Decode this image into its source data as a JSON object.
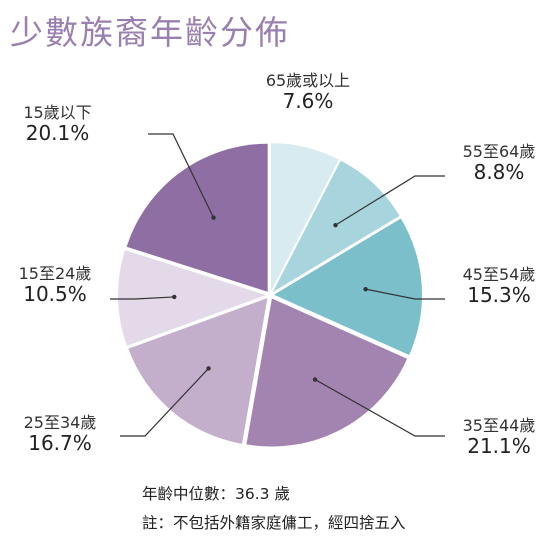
{
  "chart_data": {
    "type": "pie",
    "title": "少數族裔年齡分佈",
    "slices": [
      {
        "label": "65歲或以上",
        "value": 7.6,
        "value_label": "7.6%",
        "color": "#d8ebf0"
      },
      {
        "label": "55至64歲",
        "value": 8.8,
        "value_label": "8.8%",
        "color": "#a8d5dd"
      },
      {
        "label": "45至54歲",
        "value": 15.3,
        "value_label": "15.3%",
        "color": "#7bbfcb"
      },
      {
        "label": "35至44歲",
        "value": 21.1,
        "value_label": "21.1%",
        "color": "#a383b0"
      },
      {
        "label": "25至34歲",
        "value": 16.7,
        "value_label": "16.7%",
        "color": "#c3afcc"
      },
      {
        "label": "15至24歲",
        "value": 10.5,
        "value_label": "10.5%",
        "color": "#e3d9e9"
      },
      {
        "label": "15歲以下",
        "value": 20.1,
        "value_label": "20.1%",
        "color": "#8f6fa3"
      }
    ],
    "start_angle_deg": 0,
    "direction": "clockwise",
    "legend": "none"
  },
  "notes": {
    "median": "年齡中位數：36.3 歲",
    "footnote": "註：不包括外籍家庭傭工，經四捨五入"
  }
}
